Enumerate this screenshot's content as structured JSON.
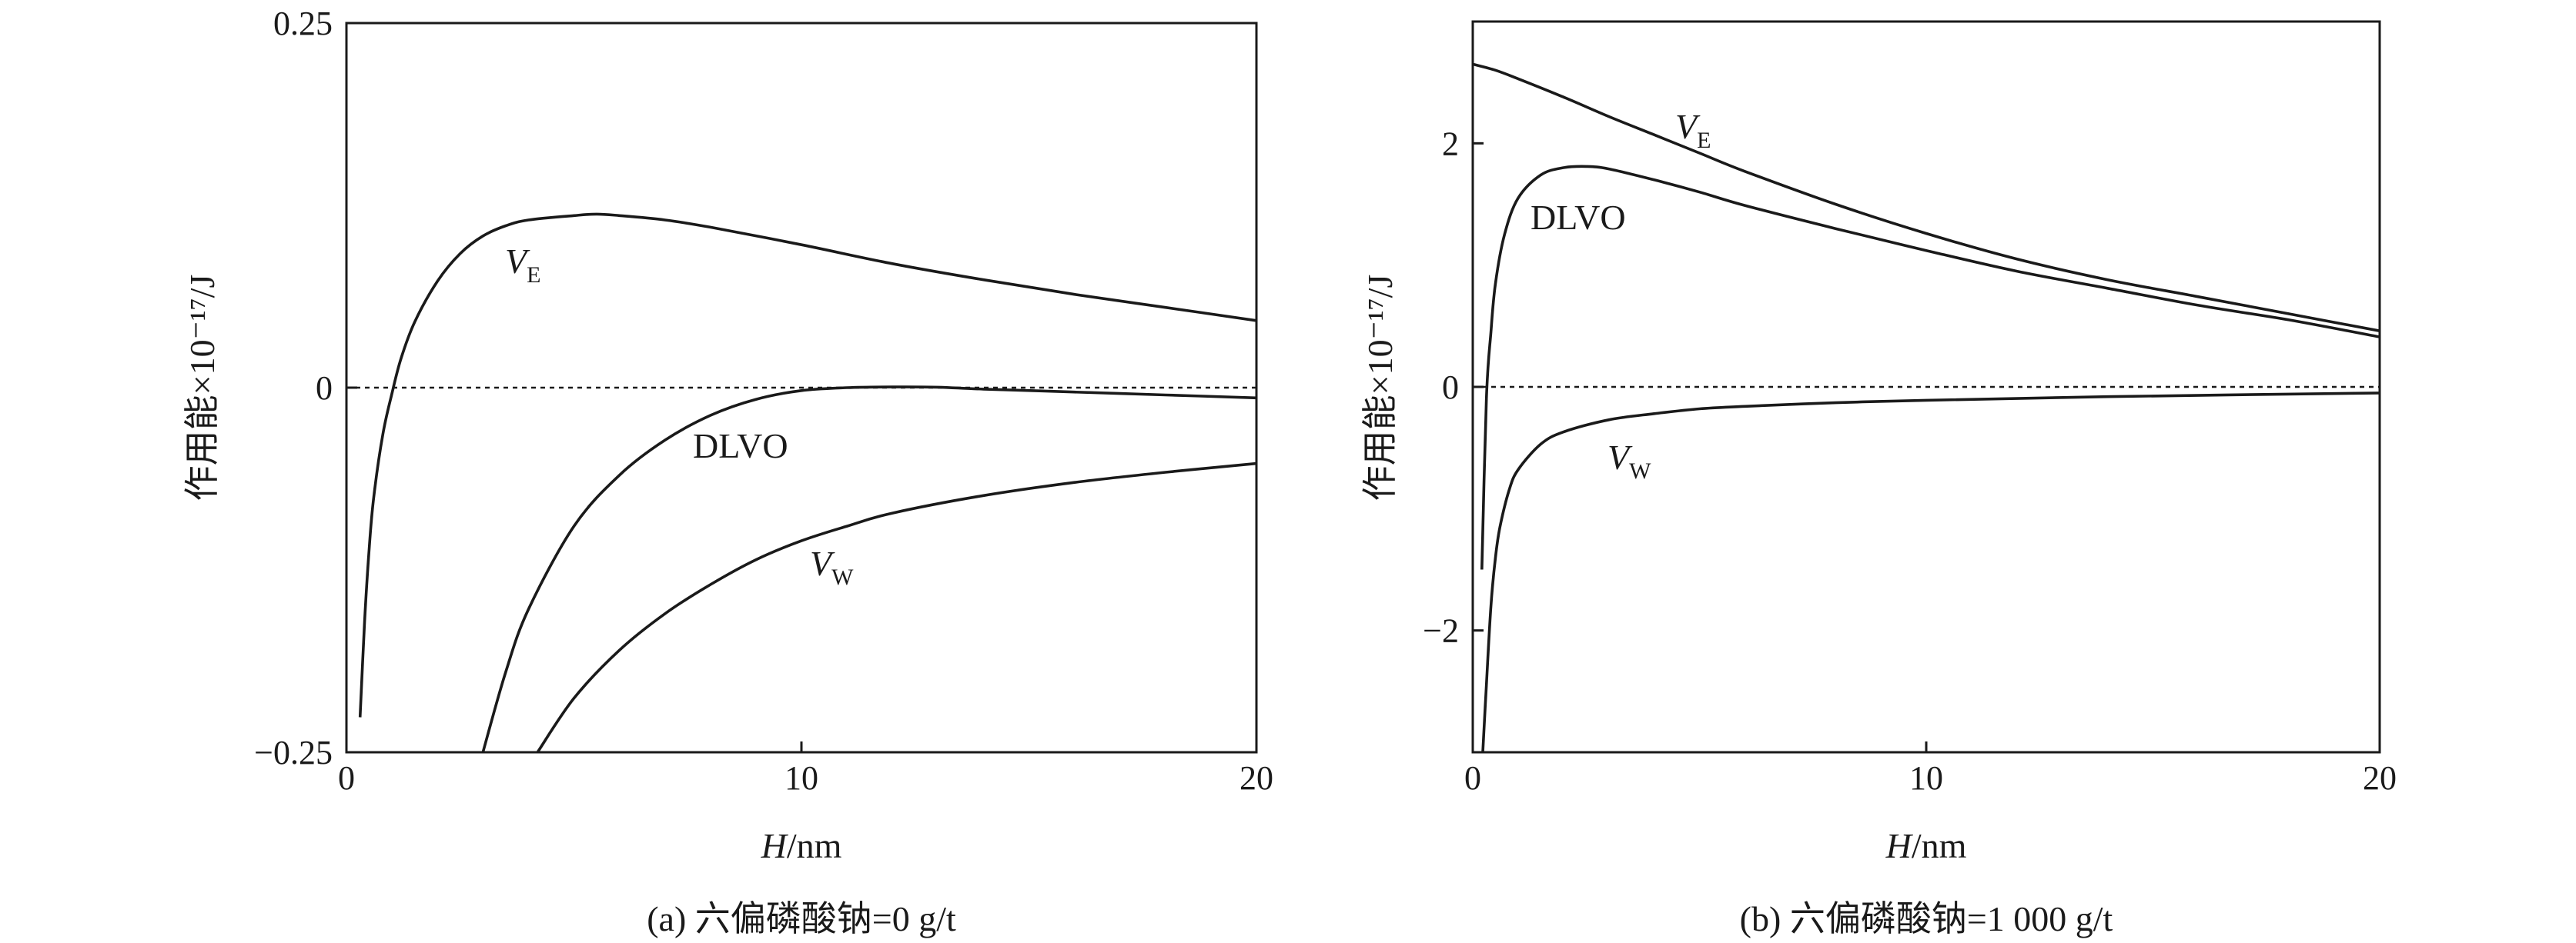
{
  "chart_data": [
    {
      "type": "line",
      "caption_prefix": "(a) ",
      "caption": "六偏磷酸钠=0 g/t",
      "xlabel_italic": "H",
      "xlabel_unit": "/nm",
      "ylabel": "作用能×10⁻¹⁷/J",
      "xlim": [
        0,
        20
      ],
      "ylim": [
        -0.25,
        0.25
      ],
      "xticks": [
        "0",
        "10",
        "20"
      ],
      "xtick_values": [
        0,
        10,
        20
      ],
      "yticks": [
        "−0.25",
        "0",
        "0.25"
      ],
      "ytick_values": [
        -0.25,
        0,
        0.25
      ],
      "zero_line": "dashed",
      "series": [
        {
          "name": "V_E",
          "label_main": "V",
          "label_sub": "E",
          "x": [
            0.3,
            0.4,
            0.5,
            0.6,
            0.8,
            1.0,
            1.2,
            1.5,
            2.0,
            2.5,
            3.0,
            3.5,
            4.0,
            5.0,
            5.5,
            6.0,
            7.0,
            8.0,
            10.0,
            12.0,
            14.0,
            16.0,
            18.0,
            20.0
          ],
          "values": [
            -0.226,
            -0.16,
            -0.11,
            -0.075,
            -0.032,
            -0.004,
            0.02,
            0.045,
            0.073,
            0.092,
            0.104,
            0.111,
            0.115,
            0.118,
            0.119,
            0.118,
            0.115,
            0.11,
            0.098,
            0.085,
            0.074,
            0.064,
            0.055,
            0.046
          ]
        },
        {
          "name": "DLVO",
          "label_main": "DLVO",
          "label_sub": "",
          "x": [
            3.0,
            3.5,
            4.0,
            5.0,
            6.0,
            7.0,
            8.0,
            9.0,
            10.0,
            11.0,
            12.0,
            13.0,
            14.0,
            16.0,
            18.0,
            20.0
          ],
          "values": [
            -0.25,
            -0.195,
            -0.152,
            -0.095,
            -0.06,
            -0.036,
            -0.019,
            -0.008,
            -0.002,
            0.0,
            0.0005,
            0.0003,
            -0.001,
            -0.003,
            -0.005,
            -0.007
          ]
        },
        {
          "name": "V_W",
          "label_main": "V",
          "label_sub": "W",
          "x": [
            4.2,
            5.0,
            6.0,
            7.0,
            8.0,
            9.0,
            10.0,
            11.0,
            12.0,
            14.0,
            16.0,
            18.0,
            20.0
          ],
          "values": [
            -0.25,
            -0.213,
            -0.18,
            -0.155,
            -0.135,
            -0.118,
            -0.105,
            -0.095,
            -0.086,
            -0.074,
            -0.065,
            -0.058,
            -0.052
          ]
        }
      ]
    },
    {
      "type": "line",
      "caption_prefix": "(b) ",
      "caption": "六偏磷酸钠=1 000 g/t",
      "xlabel_italic": "H",
      "xlabel_unit": "/nm",
      "ylabel": "作用能×10⁻¹⁷/J",
      "xlim": [
        0,
        20
      ],
      "ylim": [
        -3,
        3
      ],
      "xticks": [
        "0",
        "10",
        "20"
      ],
      "xtick_values": [
        0,
        10,
        20
      ],
      "yticks": [
        "−2",
        "0",
        "2"
      ],
      "ytick_values": [
        -2,
        0,
        2
      ],
      "zero_line": "dashed",
      "series": [
        {
          "name": "V_E",
          "label_main": "V",
          "label_sub": "E",
          "x": [
            0.0,
            0.5,
            1.0,
            2.0,
            3.0,
            4.0,
            5.0,
            6.0,
            8.0,
            10.0,
            12.0,
            14.0,
            16.0,
            18.0,
            20.0
          ],
          "values": [
            2.65,
            2.6,
            2.53,
            2.38,
            2.22,
            2.07,
            1.92,
            1.77,
            1.5,
            1.26,
            1.05,
            0.88,
            0.74,
            0.6,
            0.46
          ]
        },
        {
          "name": "DLVO",
          "label_main": "DLVO",
          "label_sub": "",
          "x": [
            0.2,
            0.3,
            0.4,
            0.5,
            0.7,
            1.0,
            1.5,
            2.0,
            2.5,
            3.0,
            4.0,
            5.0,
            6.0,
            8.0,
            10.0,
            12.0,
            14.0,
            16.0,
            18.0,
            20.0
          ],
          "values": [
            -1.5,
            -0.1,
            0.45,
            0.85,
            1.25,
            1.55,
            1.74,
            1.8,
            1.81,
            1.79,
            1.7,
            1.6,
            1.49,
            1.3,
            1.12,
            0.95,
            0.81,
            0.67,
            0.55,
            0.41
          ]
        },
        {
          "name": "V_W",
          "label_main": "V",
          "label_sub": "W",
          "x": [
            0.22,
            0.3,
            0.4,
            0.5,
            0.6,
            0.8,
            1.0,
            1.5,
            2.0,
            3.0,
            4.0,
            5.0,
            6.0,
            8.0,
            10.0,
            14.0,
            20.0
          ],
          "values": [
            -3.0,
            -2.45,
            -1.8,
            -1.4,
            -1.15,
            -0.85,
            -0.68,
            -0.47,
            -0.37,
            -0.27,
            -0.22,
            -0.18,
            -0.16,
            -0.13,
            -0.11,
            -0.08,
            -0.05
          ]
        }
      ]
    }
  ]
}
